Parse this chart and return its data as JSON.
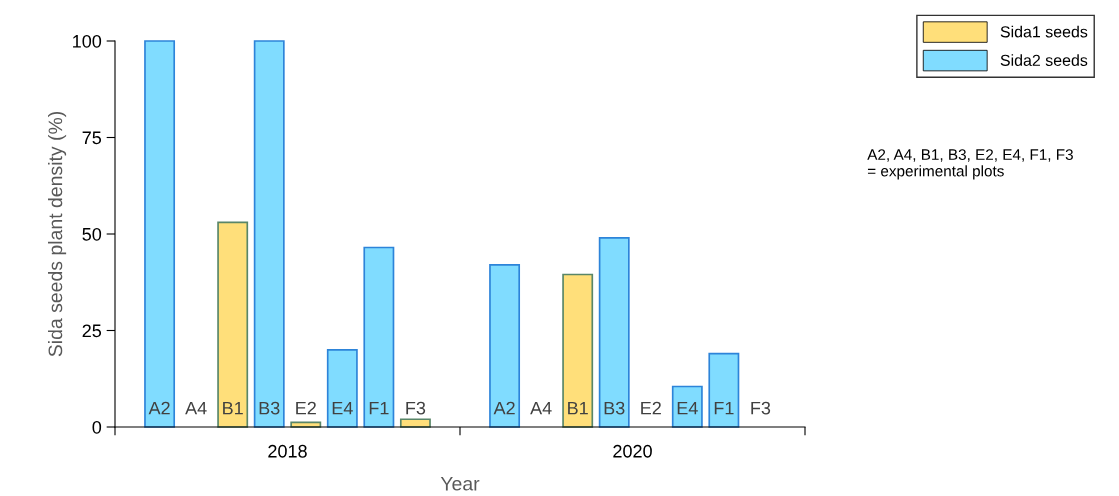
{
  "chart_data": {
    "type": "bar",
    "xlabel": "Year",
    "ylabel": "Sida seeds plant density (%)",
    "categories": [
      "A2",
      "A4",
      "B1",
      "B3",
      "E2",
      "E4",
      "F1",
      "F3",
      "A2",
      "A4",
      "B1",
      "B3",
      "E2",
      "E4",
      "F1",
      "F3"
    ],
    "series": [
      {
        "name": "Sida1 seeds",
        "color": "#ffdf7a",
        "values": [
          null,
          null,
          53,
          null,
          1.2,
          null,
          null,
          2,
          null,
          null,
          39.5,
          null,
          null,
          null,
          null,
          null
        ]
      },
      {
        "name": "Sida2 seeds",
        "color": "#80dcff",
        "values": [
          100,
          null,
          null,
          100,
          null,
          20,
          46.5,
          null,
          42,
          null,
          null,
          49,
          null,
          10.5,
          19,
          null
        ]
      }
    ],
    "ylim": [
      0,
      100
    ],
    "yticks": [
      0,
      25,
      50,
      75,
      100
    ],
    "legend": "top right",
    "annotations": [
      "2018",
      "2020",
      "A2, A4, B1, B3, E2, E4, F1, F3\n= experimental plots"
    ]
  }
}
